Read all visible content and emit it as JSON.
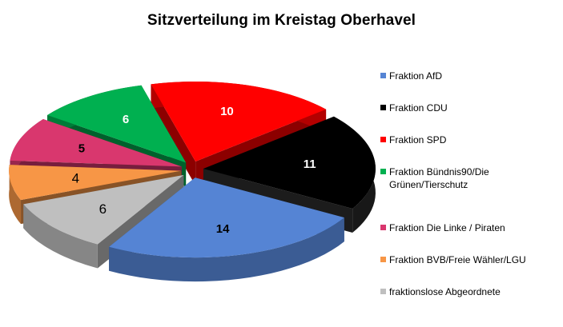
{
  "chart_data": {
    "type": "pie",
    "title": "Sitzverteilung im Kreistag Oberhavel",
    "legend_position": "right",
    "slices": [
      {
        "label": "Fraktion AfD",
        "value": 14,
        "value_label": "14",
        "color": "#5584d4",
        "label_color": "#000000"
      },
      {
        "label": "Fraktion CDU",
        "value": 11,
        "value_label": "11",
        "color": "#000000",
        "label_color": "#ffffff"
      },
      {
        "label": "Fraktion SPD",
        "value": 10,
        "value_label": "10",
        "color": "#ff0000",
        "label_color": "#ffffff"
      },
      {
        "label": "Fraktion Bündnis90/Die Grünen/Tierschutz",
        "value": 6,
        "value_label": "6",
        "color": "#00b050",
        "label_color": "#ffffff"
      },
      {
        "label": "Fraktion Die Linke / Piraten",
        "value": 5,
        "value_label": "5",
        "color": "#d9376e",
        "label_color": "#000000"
      },
      {
        "label": "Fraktion BVB/Freie Wähler/LGU",
        "value": 4,
        "value_label": "4",
        "color": "#f79646",
        "label_color": "#000000"
      },
      {
        "label": "fraktionslose Abgeordnete",
        "value": 6,
        "value_label": "6",
        "color": "#bfbfbf",
        "label_color": "#000000"
      }
    ]
  }
}
